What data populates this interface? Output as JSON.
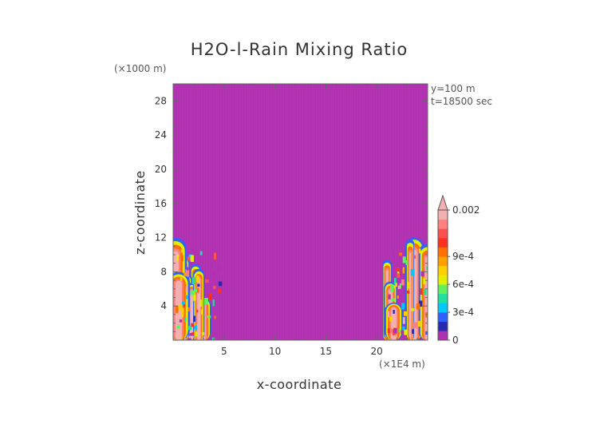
{
  "chart_data": {
    "type": "heatmap",
    "title": "H2O-l-Rain Mixing Ratio",
    "xlabel": "x-coordinate",
    "ylabel": "z-coordinate",
    "x_unit": "(×1E4 m)",
    "y_unit": "(×1000 m)",
    "xlim": [
      0,
      25
    ],
    "ylim": [
      0,
      30
    ],
    "x_ticks": [
      5,
      10,
      15,
      20
    ],
    "y_ticks": [
      4,
      8,
      12,
      16,
      20,
      24,
      28
    ],
    "x_tick_labels": [
      "5",
      "10",
      "15",
      "20"
    ],
    "y_tick_labels": [
      "4",
      "8",
      "12",
      "16",
      "20",
      "24",
      "28"
    ],
    "annotations": [
      "y=100 m",
      "t=18500 sec"
    ],
    "background_value": 0,
    "colorbar": {
      "min": 0,
      "max": 0.002,
      "tick_values": [
        0,
        0.0003,
        0.0006,
        0.0009,
        0.002
      ],
      "tick_labels": [
        "0",
        "3e-4",
        "6e-4",
        "9e-4",
        "0.002"
      ],
      "colors": [
        "#b030b0",
        "#2a2ab0",
        "#3060ff",
        "#00c8ff",
        "#20e0a0",
        "#60f060",
        "#e0f000",
        "#ffd000",
        "#ffa000",
        "#ff7000",
        "#ff3020",
        "#ff5050",
        "#ff8080",
        "#f4b0b0"
      ]
    },
    "regions": [
      {
        "name": "left-cloud",
        "x_range": [
          0.0,
          4.5
        ],
        "z_range": [
          0.0,
          12.0
        ],
        "max_value": 0.002
      },
      {
        "name": "right-cloud",
        "x_range": [
          21.0,
          25.0
        ],
        "z_range": [
          0.0,
          12.0
        ],
        "max_value": 0.002
      }
    ]
  },
  "colors": {
    "background": "#b030b0",
    "text": "#333333",
    "axis": "#666666"
  }
}
